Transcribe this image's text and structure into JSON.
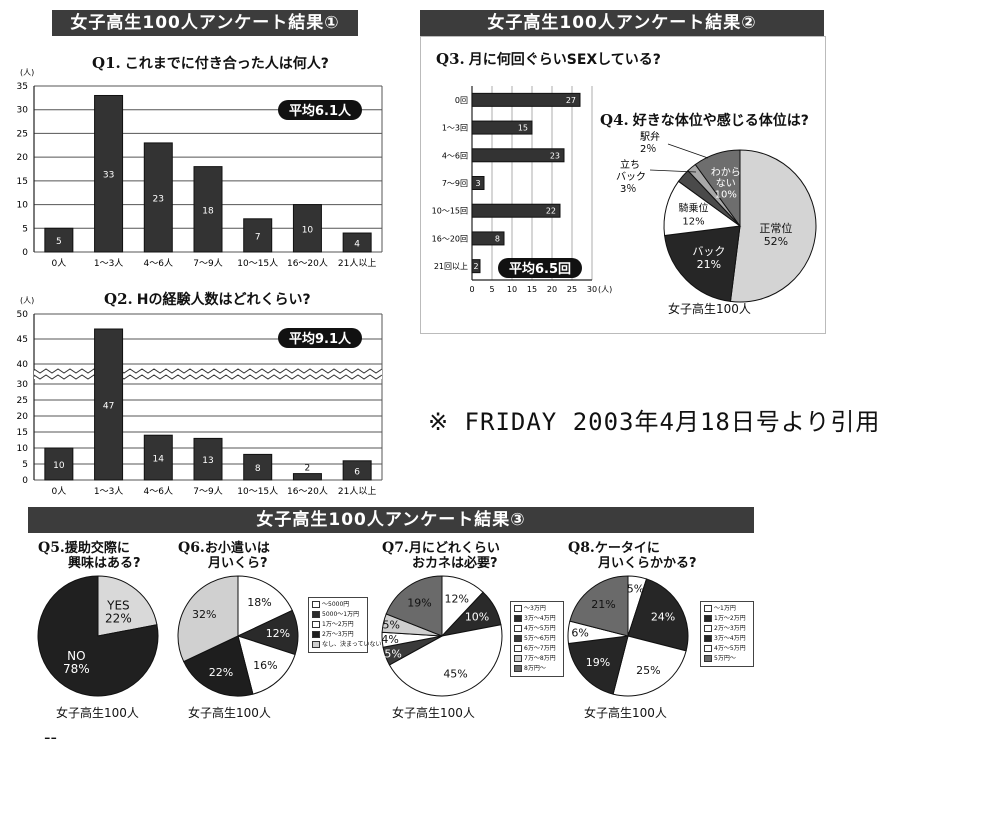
{
  "banners": {
    "b1": "女子高生100人アンケート結果①",
    "b2": "女子高生100人アンケート結果②",
    "b3": "女子高生100人アンケート結果③"
  },
  "note": "※ FRIDAY 2003年4月18日号より引用",
  "footer_dash": "--",
  "population_label": "女子高生100人",
  "chart_data": [
    {
      "id": "q1",
      "type": "bar",
      "qnum": "Q1.",
      "title": "これまでに付き合った人は何人?",
      "unit": "(人)",
      "categories": [
        "0人",
        "1～3人",
        "4～6人",
        "7～9人",
        "10～15人",
        "16～20人",
        "21人以上"
      ],
      "values": [
        5,
        33,
        23,
        18,
        7,
        10,
        4
      ],
      "ylim": [
        0,
        35
      ],
      "yticks": [
        0,
        5,
        10,
        15,
        20,
        25,
        30,
        35
      ],
      "average": "平均6.1人",
      "grid": true
    },
    {
      "id": "q2",
      "type": "bar",
      "qnum": "Q2.",
      "title": "Hの経験人数はどれくらい?",
      "unit": "(人)",
      "categories": [
        "0人",
        "1～3人",
        "4～6人",
        "7～9人",
        "10～15人",
        "16～20人",
        "21人以上"
      ],
      "values": [
        10,
        47,
        14,
        13,
        8,
        2,
        6
      ],
      "ylim": [
        0,
        50
      ],
      "yticks": [
        0,
        5,
        10,
        15,
        20,
        25,
        30,
        40,
        45,
        50
      ],
      "axis_break": "between 30 and 40",
      "average": "平均9.1人",
      "grid": true
    },
    {
      "id": "q3",
      "type": "bar",
      "orientation": "horizontal",
      "qnum": "Q3.",
      "title": "月に何回ぐらいSEXしている?",
      "unit": "(人)",
      "categories": [
        "0回",
        "1～3回",
        "4～6回",
        "7～9回",
        "10～15回",
        "16～20回",
        "21回以上"
      ],
      "values": [
        27,
        15,
        23,
        3,
        22,
        8,
        2
      ],
      "xlim": [
        0,
        30
      ],
      "xticks": [
        0,
        5,
        10,
        15,
        20,
        25,
        30
      ],
      "average": "平均6.5回"
    },
    {
      "id": "q4",
      "type": "pie",
      "qnum": "Q4.",
      "title": "好きな体位や感じる体位は?",
      "slices": [
        {
          "label": "正常位",
          "value": 52,
          "color": "#d4d4d4"
        },
        {
          "label": "バック",
          "value": 21,
          "color": "#262626"
        },
        {
          "label": "騎乗位",
          "value": 12,
          "color": "#ffffff"
        },
        {
          "label": "立ちバック",
          "value": 3,
          "color": "#4a4a4a"
        },
        {
          "label": "駅弁",
          "value": 2,
          "color": "#a8a8a8"
        },
        {
          "label": "わからない",
          "value": 10,
          "color": "#6e6e6e"
        }
      ],
      "labels_text": {
        "seijoui": [
          "正常位",
          "52%"
        ],
        "back": [
          "バック",
          "21%"
        ],
        "kijoui": [
          "騎乗位",
          "12%"
        ],
        "tachi": [
          "立ち",
          "バック",
          "3％"
        ],
        "ekiben": [
          "駅弁",
          "2％"
        ],
        "wakaranai": [
          "わから",
          "ない",
          "10%"
        ]
      }
    },
    {
      "id": "q5",
      "type": "pie",
      "qnum": "Q5.",
      "title_lines": [
        "援助交際に",
        "興味はある?"
      ],
      "slices": [
        {
          "label": "YES",
          "value": 22,
          "color": "#d9d9d9"
        },
        {
          "label": "NO",
          "value": 78,
          "color": "#202020"
        }
      ],
      "labels_text": {
        "yes": [
          "YES",
          "22%"
        ],
        "no": [
          "NO",
          "78%"
        ]
      }
    },
    {
      "id": "q6",
      "type": "pie",
      "qnum": "Q6.",
      "title_lines": [
        "お小遣いは",
        "月いくら?"
      ],
      "slices": [
        {
          "label": "～5000円",
          "value": 18,
          "color": "#ffffff"
        },
        {
          "label": "5000～1万円",
          "value": 12,
          "color": "#2a2a2a"
        },
        {
          "label": "1万～2万円",
          "value": 16,
          "color": "#ffffff"
        },
        {
          "label": "2万～3万円",
          "value": 22,
          "color": "#1e1e1e"
        },
        {
          "label": "なし・決まっていない",
          "value": 32,
          "color": "#d0d0d0"
        }
      ],
      "pct": [
        "18%",
        "12%",
        "16%",
        "22%",
        "32%"
      ],
      "legend": [
        "～5000円",
        "5000～1万円",
        "1万～2万円",
        "2万～3万円",
        "なし、決まっていない"
      ]
    },
    {
      "id": "q7",
      "type": "pie",
      "qnum": "Q7.",
      "title_lines": [
        "月にどれくらい",
        "おカネは必要?"
      ],
      "slices": [
        {
          "label": "～3万円",
          "value": 12,
          "color": "#ffffff"
        },
        {
          "label": "3万～4万円",
          "value": 10,
          "color": "#2a2a2a"
        },
        {
          "label": "4万～5万円",
          "value": 45,
          "color": "#ffffff"
        },
        {
          "label": "5万～6万円",
          "value": 5,
          "color": "#3a3a3a"
        },
        {
          "label": "6万～7万円",
          "value": 4,
          "color": "#ffffff"
        },
        {
          "label": "7万～8万円",
          "value": 5,
          "color": "#cfcfcf"
        },
        {
          "label": "8万円～",
          "value": 19,
          "color": "#6a6a6a"
        }
      ],
      "pct": [
        "12%",
        "10%",
        "45%",
        "5%",
        "4%",
        "5%",
        "19%"
      ],
      "legend": [
        "～3万円",
        "3万～4万円",
        "4万～5万円",
        "5万～6万円",
        "6万～7万円",
        "7万～8万円",
        "8万円～"
      ]
    },
    {
      "id": "q8",
      "type": "pie",
      "qnum": "Q8.",
      "title_lines": [
        "ケータイに",
        "月いくらかかる?"
      ],
      "slices": [
        {
          "label": "～1万円",
          "value": 5,
          "color": "#ffffff"
        },
        {
          "label": "1万～2万円",
          "value": 24,
          "color": "#262626"
        },
        {
          "label": "2万～3万円",
          "value": 25,
          "color": "#ffffff"
        },
        {
          "label": "3万～4万円",
          "value": 19,
          "color": "#262626"
        },
        {
          "label": "4万～5万円",
          "value": 6,
          "color": "#ffffff"
        },
        {
          "label": "5万円～",
          "value": 21,
          "color": "#6a6a6a"
        }
      ],
      "pct": [
        "5%",
        "24%",
        "25%",
        "19%",
        "6%",
        "21%"
      ],
      "legend": [
        "～1万円",
        "1万～2万円",
        "2万～3万円",
        "3万～4万円",
        "4万～5万円",
        "5万円～"
      ]
    }
  ]
}
